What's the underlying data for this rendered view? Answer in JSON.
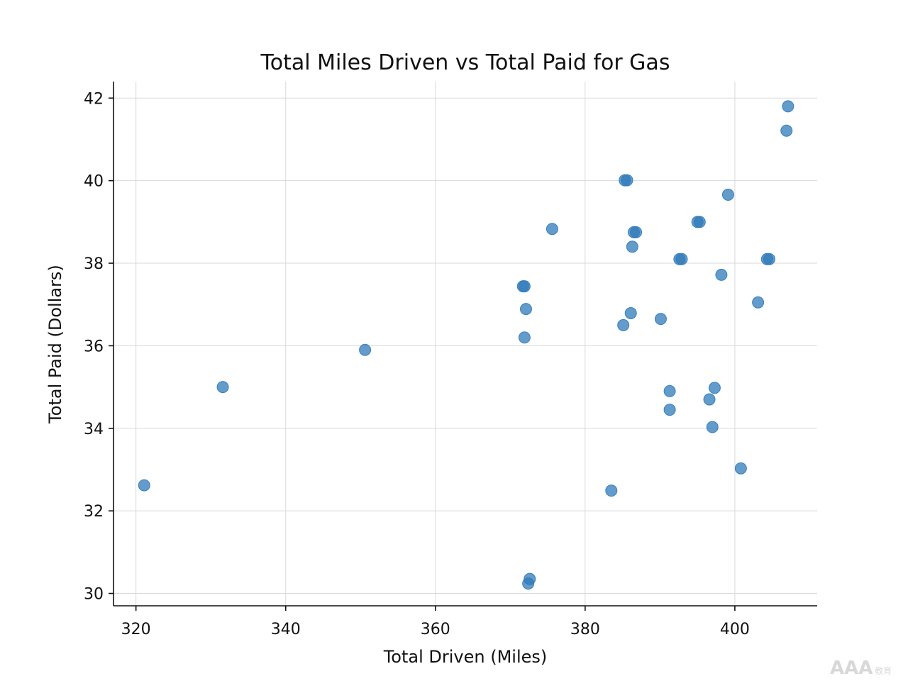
{
  "chart_data": {
    "type": "scatter",
    "title": "Total Miles Driven vs Total Paid for Gas",
    "xlabel": "Total Driven (Miles)",
    "ylabel": "Total Paid (Dollars)",
    "xlim": [
      317,
      411
    ],
    "ylim": [
      29.7,
      42.4
    ],
    "xticks": [
      320,
      340,
      360,
      380,
      400
    ],
    "yticks": [
      30,
      32,
      34,
      36,
      38,
      40,
      42
    ],
    "grid": true,
    "legend": "none",
    "series": [
      {
        "color": "#2f7ab9",
        "points": [
          {
            "x": 321.1,
            "y": 32.62
          },
          {
            "x": 331.6,
            "y": 35.0
          },
          {
            "x": 350.6,
            "y": 35.9
          },
          {
            "x": 371.7,
            "y": 37.44
          },
          {
            "x": 371.9,
            "y": 37.44
          },
          {
            "x": 372.1,
            "y": 36.89
          },
          {
            "x": 371.9,
            "y": 36.2
          },
          {
            "x": 372.6,
            "y": 30.35
          },
          {
            "x": 372.4,
            "y": 30.24
          },
          {
            "x": 375.6,
            "y": 38.83
          },
          {
            "x": 383.5,
            "y": 32.49
          },
          {
            "x": 385.1,
            "y": 36.5
          },
          {
            "x": 385.3,
            "y": 40.01
          },
          {
            "x": 385.6,
            "y": 40.01
          },
          {
            "x": 386.1,
            "y": 36.79
          },
          {
            "x": 386.3,
            "y": 38.4
          },
          {
            "x": 386.5,
            "y": 38.75
          },
          {
            "x": 386.8,
            "y": 38.75
          },
          {
            "x": 390.1,
            "y": 36.65
          },
          {
            "x": 391.3,
            "y": 34.9
          },
          {
            "x": 391.3,
            "y": 34.45
          },
          {
            "x": 392.6,
            "y": 38.1
          },
          {
            "x": 392.9,
            "y": 38.1
          },
          {
            "x": 395.0,
            "y": 39.0
          },
          {
            "x": 395.3,
            "y": 39.0
          },
          {
            "x": 396.6,
            "y": 34.7
          },
          {
            "x": 397.0,
            "y": 34.03
          },
          {
            "x": 397.3,
            "y": 34.98
          },
          {
            "x": 398.2,
            "y": 37.72
          },
          {
            "x": 399.1,
            "y": 39.66
          },
          {
            "x": 400.8,
            "y": 33.03
          },
          {
            "x": 403.1,
            "y": 37.05
          },
          {
            "x": 404.3,
            "y": 38.1
          },
          {
            "x": 404.6,
            "y": 38.1
          },
          {
            "x": 406.9,
            "y": 41.21
          },
          {
            "x": 407.1,
            "y": 41.8
          }
        ]
      }
    ]
  },
  "watermark": {
    "text": "AAA",
    "subtext": "教育"
  }
}
